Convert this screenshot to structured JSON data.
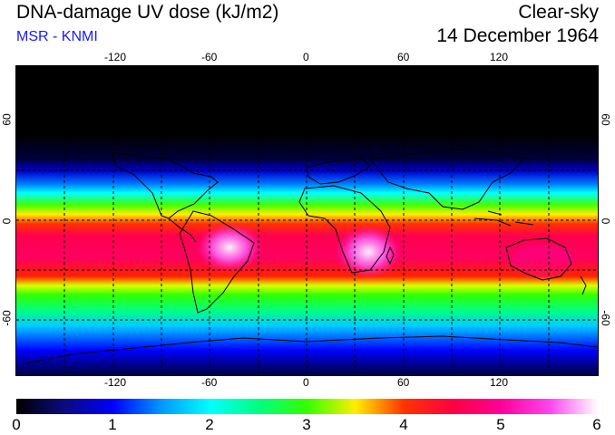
{
  "header": {
    "title": "DNA-damage UV dose (kJ/m2)",
    "source": "MSR - KNMI",
    "sky": "Clear-sky",
    "date": "14 December 1964"
  },
  "colors": {
    "source_text": "#1a1aff"
  },
  "map": {
    "lon_ticks": [
      "-120",
      "-60",
      "0",
      "60",
      "120"
    ],
    "lat_ticks": [
      "60",
      "0",
      "-60"
    ],
    "gridlines": "dashed every 30 degrees"
  },
  "colorbar": {
    "labels": [
      "0",
      "1",
      "2",
      "3",
      "4",
      "5",
      "6"
    ],
    "stops": [
      {
        "value": 0,
        "color": "#000000"
      },
      {
        "value": 0.5,
        "color": "#0a0a80"
      },
      {
        "value": 1,
        "color": "#0000ff"
      },
      {
        "value": 1.5,
        "color": "#0099ff"
      },
      {
        "value": 2,
        "color": "#00ffff"
      },
      {
        "value": 2.5,
        "color": "#00ff80"
      },
      {
        "value": 3,
        "color": "#33ff00"
      },
      {
        "value": 3.5,
        "color": "#ffee00"
      },
      {
        "value": 4,
        "color": "#ff3300"
      },
      {
        "value": 4.5,
        "color": "#ff0040"
      },
      {
        "value": 5,
        "color": "#ff0099"
      },
      {
        "value": 5.5,
        "color": "#ff44ee"
      },
      {
        "value": 6,
        "color": "#ffffff"
      }
    ]
  }
}
